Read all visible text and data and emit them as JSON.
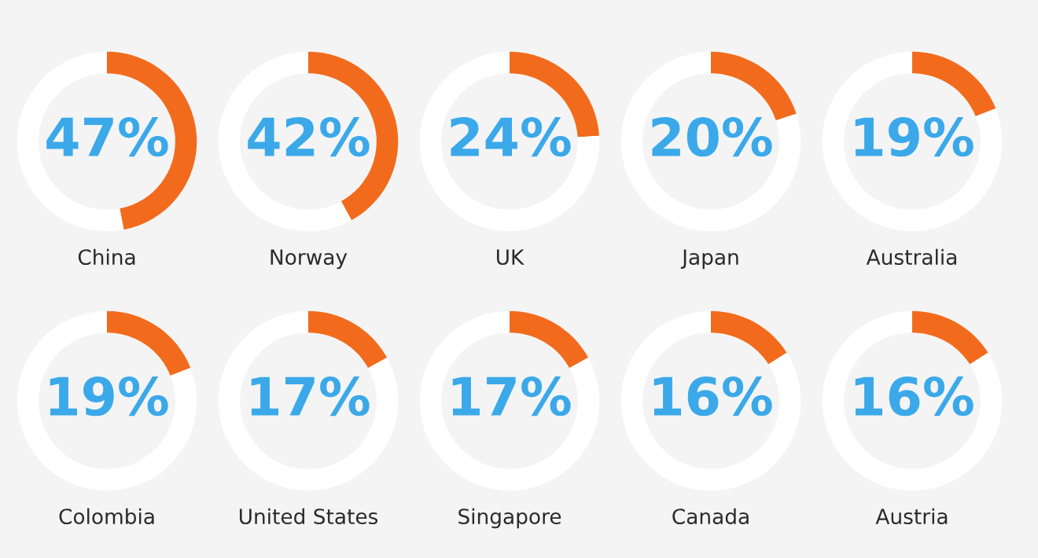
{
  "chart_data": [
    {
      "type": "donut",
      "xlabel": "China",
      "categories": [
        null,
        null
      ],
      "values": [
        47,
        53
      ],
      "colors": [
        "#f26b1d",
        "#ffffff"
      ],
      "value_labels": [
        "47%",
        null
      ]
    },
    {
      "type": "donut",
      "xlabel": "Norway",
      "categories": [
        null,
        null
      ],
      "values": [
        42,
        58
      ],
      "colors": [
        "#f26b1d",
        "#ffffff"
      ],
      "value_labels": [
        "42%",
        null
      ]
    },
    {
      "type": "donut",
      "xlabel": "UK",
      "categories": [
        null,
        null
      ],
      "values": [
        24,
        76
      ],
      "colors": [
        "#f26b1d",
        "#ffffff"
      ],
      "value_labels": [
        "24%",
        null
      ]
    },
    {
      "type": "donut",
      "xlabel": "Japan",
      "categories": [
        null,
        null
      ],
      "values": [
        20,
        80
      ],
      "colors": [
        "#f26b1d",
        "#ffffff"
      ],
      "value_labels": [
        "20%",
        null
      ]
    },
    {
      "type": "donut",
      "xlabel": "Australia",
      "categories": [
        null,
        null
      ],
      "values": [
        19,
        81
      ],
      "colors": [
        "#f26b1d",
        "#ffffff"
      ],
      "value_labels": [
        "19%",
        null
      ]
    },
    {
      "type": "donut",
      "xlabel": "Colombia",
      "categories": [
        null,
        null
      ],
      "values": [
        19,
        81
      ],
      "colors": [
        "#f26b1d",
        "#ffffff"
      ],
      "value_labels": [
        "19%",
        null
      ]
    },
    {
      "type": "donut",
      "xlabel": "United States",
      "categories": [
        null,
        null
      ],
      "values": [
        17,
        83
      ],
      "colors": [
        "#f26b1d",
        "#ffffff"
      ],
      "value_labels": [
        "17%",
        null
      ]
    },
    {
      "type": "donut",
      "xlabel": "Singapore",
      "categories": [
        null,
        null
      ],
      "values": [
        17,
        83
      ],
      "colors": [
        "#f26b1d",
        "#ffffff"
      ],
      "value_labels": [
        "17%",
        null
      ]
    },
    {
      "type": "donut",
      "xlabel": "Canada",
      "categories": [
        null,
        null
      ],
      "values": [
        16,
        84
      ],
      "colors": [
        "#f26b1d",
        "#ffffff"
      ],
      "value_labels": [
        "16%",
        null
      ]
    },
    {
      "type": "donut",
      "xlabel": "Austria",
      "categories": [
        null,
        null
      ],
      "values": [
        16,
        84
      ],
      "colors": [
        "#f26b1d",
        "#ffffff"
      ],
      "value_labels": [
        "16%",
        null
      ]
    }
  ]
}
